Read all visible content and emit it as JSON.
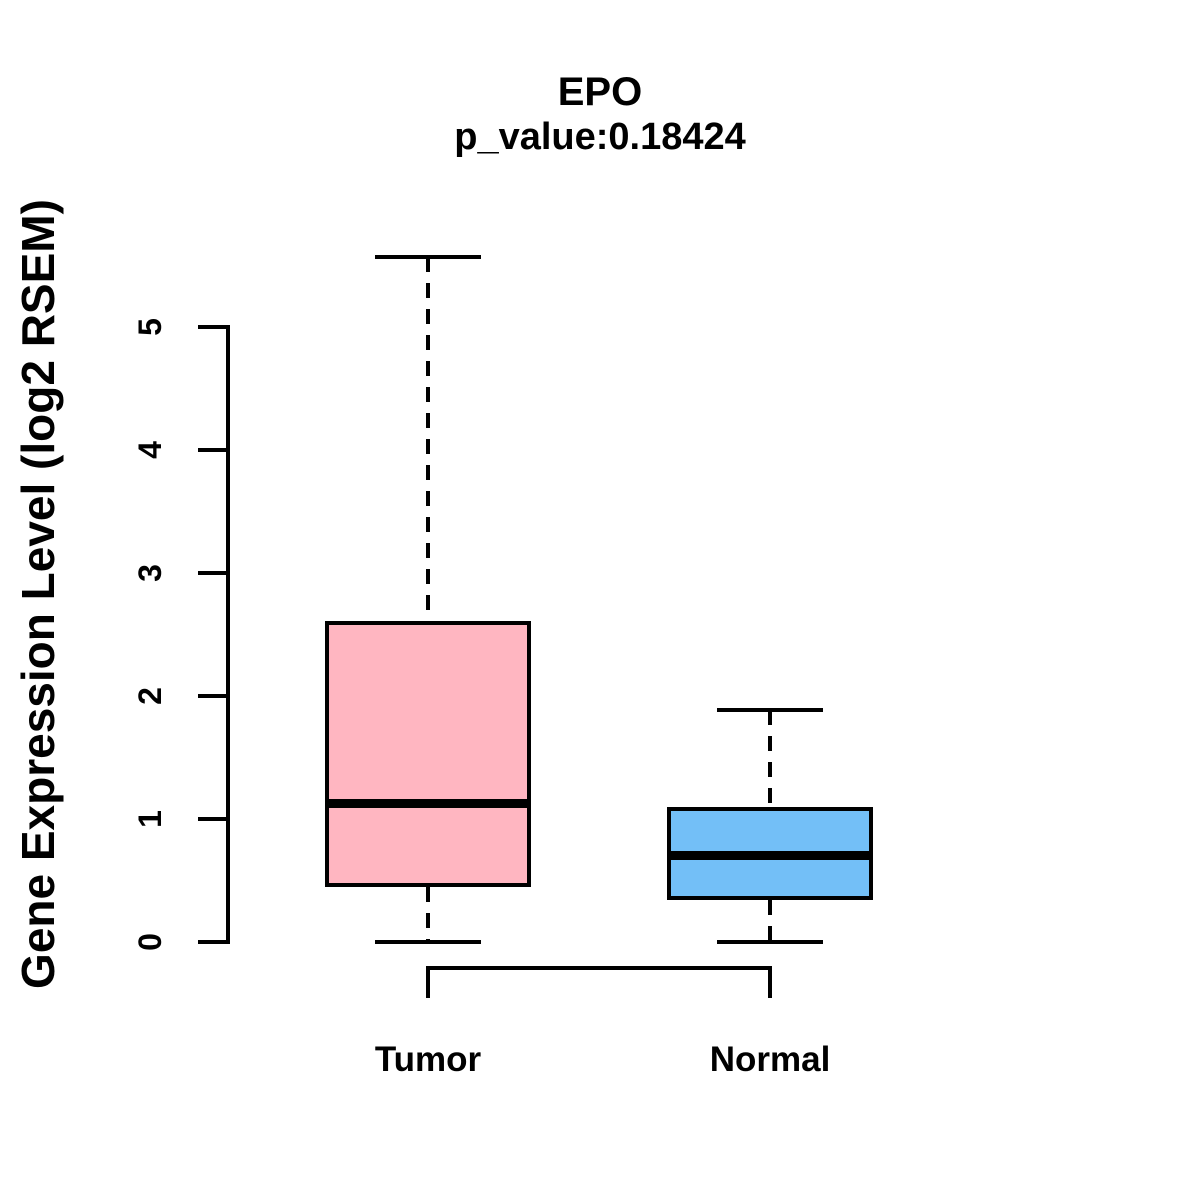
{
  "header": {
    "title": "EPO",
    "subtitle": "p_value:0.18424"
  },
  "y_axis": {
    "label": "Gene Expression Level (log2 RSEM)"
  },
  "chart_data": {
    "type": "boxplot",
    "title": "EPO",
    "subtitle": "p_value:0.18424",
    "gene": "EPO",
    "p_value": 0.18424,
    "ylabel": "Gene Expression Level (log2 RSEM)",
    "xlabel": "",
    "ylim": [
      0,
      5.6
    ],
    "yticks": [
      0,
      1,
      2,
      3,
      4,
      5
    ],
    "grid": false,
    "legend_position": "none",
    "whisker_style": "dashed",
    "categories": [
      "Tumor",
      "Normal"
    ],
    "series": [
      {
        "name": "Tumor",
        "fill_color": "#FFB6C1",
        "border_color": "#000000",
        "whisker_low": 0,
        "q1": 0.45,
        "median": 1.13,
        "q3": 2.61,
        "whisker_high": 5.57
      },
      {
        "name": "Normal",
        "fill_color": "#73BFF7",
        "border_color": "#000000",
        "whisker_low": 0,
        "q1": 0.34,
        "median": 0.7,
        "q3": 1.1,
        "whisker_high": 1.89
      }
    ]
  }
}
